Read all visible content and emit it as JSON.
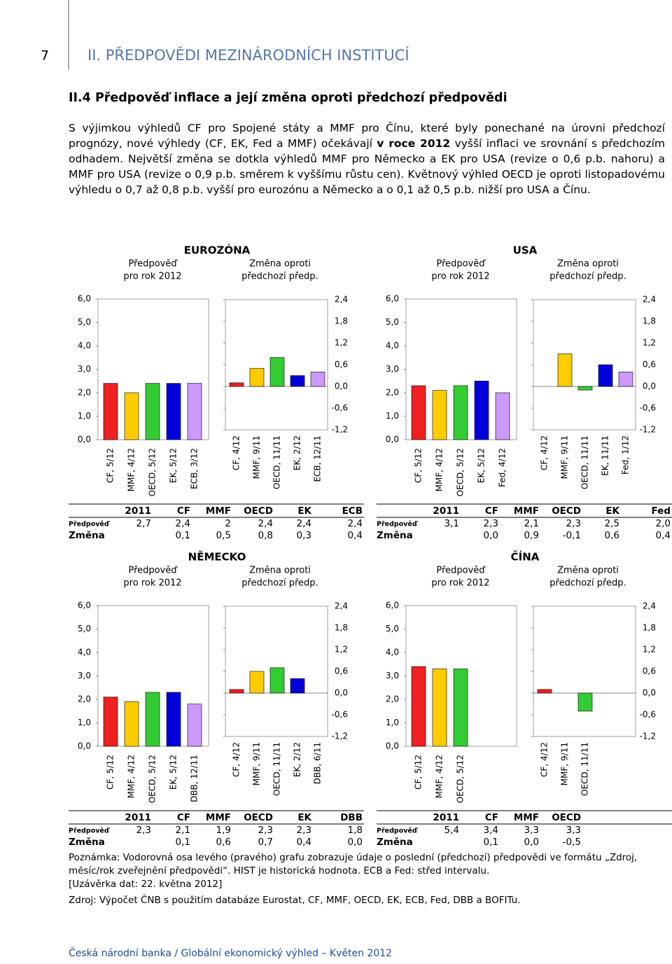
{
  "header": {
    "page_number": "7",
    "title": "II. PŘEDPOVĚDI MEZINÁRODNÍCH INSTITUCÍ"
  },
  "section_title": "II.4 Předpověď inflace a její změna oproti předchozí předpovědi",
  "intro": [
    "S výjimkou výhledů CF pro Spojené státy a MMF pro Čínu, které byly ponechané na úrovni předchozí prognózy, nové výhledy (CF, EK, Fed a MMF) očekávají ",
    "v roce 2012",
    " vyšší inflaci ve srovnání s předchozím odhadem. Největší změna se dotkla výhledů MMF pro Německo a EK pro USA (revize o 0,6 p.b. nahoru) a MMF pro USA (revize o 0,9 p.b. směrem k vyššímu růstu cen). Květnový výhled OECD je oproti listopadovému výhledu o 0,7 až 0,8 p.b. vyšší pro eurozónu a Německo a o 0,1 až 0,5 p.b. nižší pro USA a Čínu."
  ],
  "subtitles": {
    "forecast": [
      "Předpověď",
      "pro rok 2012"
    ],
    "change": [
      "Změna oproti",
      "předchozí předp."
    ]
  },
  "bar_colors": [
    "#ee2020",
    "#ffcc00",
    "#33cc33",
    "#0000dd",
    "#cc99ff"
  ],
  "forecast_axis": {
    "ylim": [
      0,
      6
    ],
    "yticks": [
      {
        "value": 0,
        "label": "0,0"
      },
      {
        "value": 1,
        "label": "1,0"
      },
      {
        "value": 2,
        "label": "2,0"
      },
      {
        "value": 3,
        "label": "3,0"
      },
      {
        "value": 4,
        "label": "4,0"
      },
      {
        "value": 5,
        "label": "5,0"
      },
      {
        "value": 6,
        "label": "6,0"
      }
    ]
  },
  "change_axis": {
    "ylim": [
      -1.2,
      2.4
    ],
    "yticks": [
      {
        "value": -1.2,
        "label": "-1,2"
      },
      {
        "value": -0.6,
        "label": "-0,6"
      },
      {
        "value": 0,
        "label": "0,0"
      },
      {
        "value": 0.6,
        "label": "0,6"
      },
      {
        "value": 1.2,
        "label": "1,2"
      },
      {
        "value": 1.8,
        "label": "1,8"
      },
      {
        "value": 2.4,
        "label": "2,4"
      }
    ]
  },
  "panels": [
    {
      "region": "EUROZÓNA",
      "forecast": {
        "type": "bar",
        "categories": [
          "CF, 5/12",
          "MMF, 4/12",
          "OECD, 5/12",
          "EK, 5/12",
          "ECB, 3/12"
        ],
        "values": [
          2.4,
          2,
          2.4,
          2.4,
          2.4
        ],
        "value_labels": [
          "2,4",
          "2",
          "2,4",
          "2,4",
          "2,4"
        ]
      },
      "change": {
        "type": "bar",
        "categories": [
          "CF, 4/12",
          "MMF, 9/11",
          "OECD, 11/11",
          "EK, 2/12",
          "ECB, 12/11"
        ],
        "values": [
          0.1,
          0.5,
          0.8,
          0.3,
          0.4
        ],
        "value_labels": [
          "0,1",
          "0,5",
          "0,8",
          "0,3",
          "0,4"
        ]
      },
      "table": {
        "header": [
          "2011",
          "CF",
          "MMF",
          "OECD",
          "EK",
          "ECB"
        ],
        "rows": [
          "Předpověď",
          "Změna"
        ],
        "actual_2011": "2,7"
      }
    },
    {
      "region": "USA",
      "forecast": {
        "type": "bar",
        "categories": [
          "CF, 5/12",
          "MMF, 4/12",
          "OECD, 5/12",
          "EK, 5/12",
          "Fed, 4/12"
        ],
        "values": [
          2.3,
          2.1,
          2.3,
          2.5,
          2.0
        ],
        "value_labels": [
          "2,3",
          "2,1",
          "2,3",
          "2,5",
          "2,0"
        ]
      },
      "change": {
        "type": "bar",
        "categories": [
          "CF, 4/12",
          "MMF, 9/11",
          "OECD, 11/11",
          "EK, 11/11",
          "Fed, 1/12"
        ],
        "values": [
          0.0,
          0.9,
          -0.1,
          0.6,
          0.4
        ],
        "value_labels": [
          "0,0",
          "0,9",
          "-0,1",
          "0,6",
          "0,4"
        ]
      },
      "table": {
        "header": [
          "2011",
          "CF",
          "MMF",
          "OECD",
          "EK",
          "Fed"
        ],
        "rows": [
          "Předpověď",
          "Změna"
        ],
        "actual_2011": "3,1"
      }
    },
    {
      "region": "NĚMECKO",
      "forecast": {
        "type": "bar",
        "categories": [
          "CF, 5/12",
          "MMF, 4/12",
          "OECD, 5/12",
          "EK, 5/12",
          "DBB, 12/11"
        ],
        "values": [
          2.1,
          1.9,
          2.3,
          2.3,
          1.8
        ],
        "value_labels": [
          "2,1",
          "1,9",
          "2,3",
          "2,3",
          "1,8"
        ]
      },
      "change": {
        "type": "bar",
        "categories": [
          "CF, 4/12",
          "MMF, 9/11",
          "OECD, 11/11",
          "EK, 2/12",
          "DBB, 6/11"
        ],
        "values": [
          0.1,
          0.6,
          0.7,
          0.4,
          0.0
        ],
        "value_labels": [
          "0,1",
          "0,6",
          "0,7",
          "0,4",
          "0,0"
        ]
      },
      "table": {
        "header": [
          "2011",
          "CF",
          "MMF",
          "OECD",
          "EK",
          "DBB"
        ],
        "rows": [
          "Předpověď",
          "Změna"
        ],
        "actual_2011": "2,3"
      }
    },
    {
      "region": "ČÍNA",
      "forecast": {
        "type": "bar",
        "categories": [
          "CF, 5/12",
          "MMF, 4/12",
          "OECD, 5/12"
        ],
        "values": [
          3.4,
          3.3,
          3.3
        ],
        "value_labels": [
          "3,4",
          "3,3",
          "3,3"
        ]
      },
      "change": {
        "type": "bar",
        "categories": [
          "CF, 4/12",
          "MMF, 9/11",
          "OECD, 11/11"
        ],
        "values": [
          0.1,
          0.0,
          -0.5
        ],
        "value_labels": [
          "0,1",
          "0,0",
          "-0,5"
        ]
      },
      "table": {
        "header": [
          "2011",
          "CF",
          "MMF",
          "OECD"
        ],
        "rows": [
          "Předpověď",
          "Změna"
        ],
        "actual_2011": "5,4"
      }
    }
  ],
  "notes": [
    "Poznámka: Vodorovná osa levého (pravého) grafu zobrazuje údaje o poslední (předchozí) předpovědi ve formátu „Zdroj, měsíc/rok zveřejnění předpovědi“. HIST je historická hodnota. ECB a Fed: střed intervalu.",
    "[Uzávěrka dat: 22. května 2012]",
    "Zdroj: Výpočet ČNB s použitím databáze Eurostat, CF, MMF, OECD, EK, ECB, Fed, DBB a BOFITu."
  ],
  "footer": "Česká národní banka / Globální ekonomický výhled – Květen 2012"
}
